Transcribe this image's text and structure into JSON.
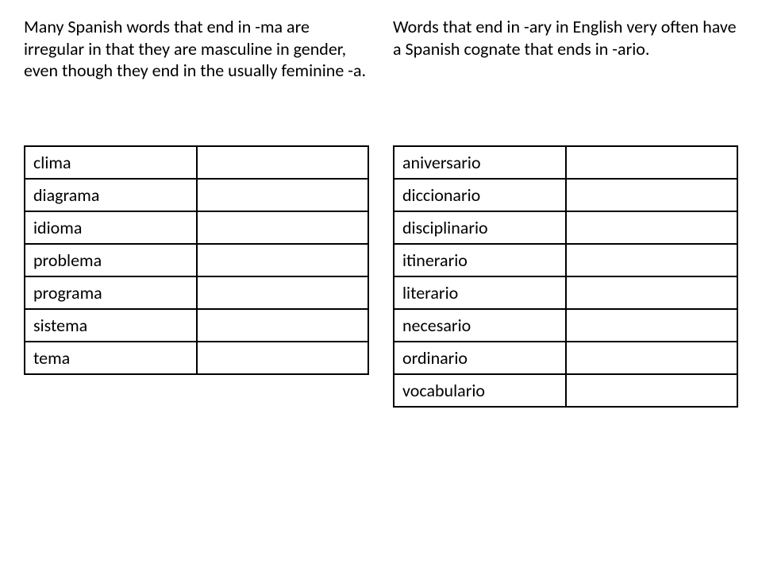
{
  "left": {
    "intro": "Many Spanish words that end in -ma are irregular in that they are masculine in gender, even though they end in the usually feminine -a.",
    "table": {
      "rows": [
        [
          "clima",
          ""
        ],
        [
          "diagrama",
          ""
        ],
        [
          "idioma",
          ""
        ],
        [
          "problema",
          ""
        ],
        [
          "programa",
          ""
        ],
        [
          "sistema",
          ""
        ],
        [
          "tema",
          ""
        ]
      ],
      "border_color": "#000000",
      "font_size": 22
    }
  },
  "right": {
    "intro": "Words that end in -ary in English very often have a Spanish cognate that ends in -ario.",
    "table": {
      "rows": [
        [
          "aniversario",
          ""
        ],
        [
          "diccionario",
          ""
        ],
        [
          "disciplinario",
          ""
        ],
        [
          "itinerario",
          ""
        ],
        [
          "literario",
          ""
        ],
        [
          "necesario",
          ""
        ],
        [
          "ordinario",
          ""
        ],
        [
          "vocabulario",
          ""
        ]
      ],
      "border_color": "#000000",
      "font_size": 22
    }
  },
  "styling": {
    "background_color": "#ffffff",
    "text_color": "#000000",
    "intro_font_size": 22,
    "cell_font_size": 22,
    "border_width": 2
  }
}
